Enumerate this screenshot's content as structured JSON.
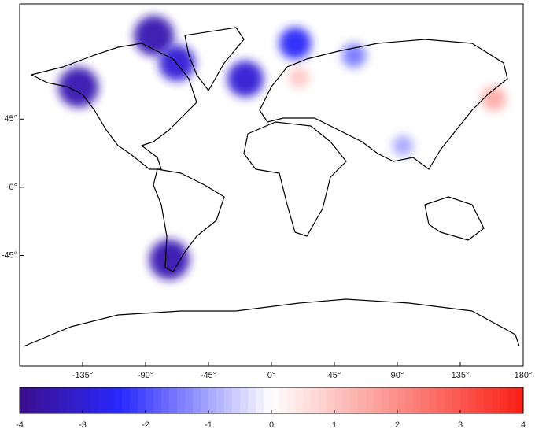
{
  "chart_data": {
    "type": "map",
    "xlim": [
      -180,
      180
    ],
    "xticks": [
      {
        "value": -135,
        "label": "-135°"
      },
      {
        "value": -90,
        "label": "-90°"
      },
      {
        "value": -45,
        "label": "-45°"
      },
      {
        "value": 0,
        "label": "0°"
      },
      {
        "value": 45,
        "label": "45°"
      },
      {
        "value": 90,
        "label": "90°"
      },
      {
        "value": 135,
        "label": "135°"
      },
      {
        "value": 180,
        "label": "180°"
      }
    ],
    "ylim": [
      -118,
      121
    ],
    "yticks": [
      {
        "value": 45,
        "label": "45°"
      },
      {
        "value": 0,
        "label": "0°"
      },
      {
        "value": -45,
        "label": "-45°"
      }
    ],
    "anomalies": {
      "lon": [
        -84,
        -67.5,
        -138,
        -18.6,
        17,
        59,
        19.7,
        -73,
        159,
        94
      ],
      "lat": [
        100,
        82,
        66,
        71.5,
        95,
        87,
        72.5,
        -47.7,
        58.5,
        27.5
      ],
      "values": [
        -3.5,
        -3,
        -3.5,
        -3,
        -2.5,
        -1.5,
        1,
        -3.5,
        1.5,
        -1
      ]
    },
    "colorbar": {
      "lim": [
        -4,
        4
      ],
      "ticks": [
        -4,
        -3,
        -2,
        -1,
        0,
        1,
        2,
        3,
        4
      ]
    }
  }
}
